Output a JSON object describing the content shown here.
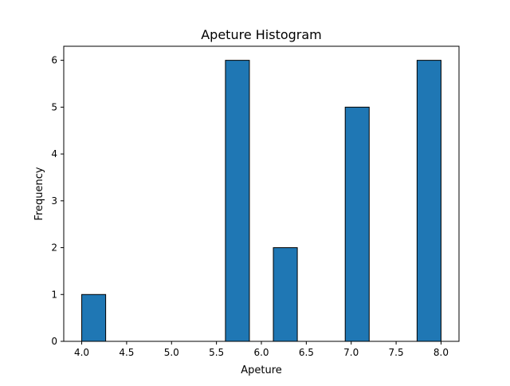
{
  "chart_data": {
    "type": "bar",
    "title": "Apeture Histogram",
    "xlabel": "Apeture",
    "ylabel": "Frequency",
    "bin_edges": [
      4.0,
      4.2667,
      4.5333,
      4.8,
      5.0667,
      5.3333,
      5.6,
      5.8667,
      6.1333,
      6.4,
      6.6667,
      6.9333,
      7.2,
      7.4667,
      7.7333,
      8.0
    ],
    "values": [
      1,
      0,
      0,
      0,
      0,
      0,
      6,
      0,
      2,
      0,
      0,
      5,
      0,
      0,
      6
    ],
    "xlim": [
      3.8,
      8.2
    ],
    "ylim": [
      0,
      6.3
    ],
    "x_ticks": [
      4.0,
      4.5,
      5.0,
      5.5,
      6.0,
      6.5,
      7.0,
      7.5,
      8.0
    ],
    "x_tick_labels": [
      "4.0",
      "4.5",
      "5.0",
      "5.5",
      "6.0",
      "6.5",
      "7.0",
      "7.5",
      "8.0"
    ],
    "y_ticks": [
      0,
      1,
      2,
      3,
      4,
      5,
      6
    ],
    "y_tick_labels": [
      "0",
      "1",
      "2",
      "3",
      "4",
      "5",
      "6"
    ],
    "bar_color": "#1f77b4",
    "edge_color": "#000000",
    "grid": false,
    "legend": "none"
  }
}
